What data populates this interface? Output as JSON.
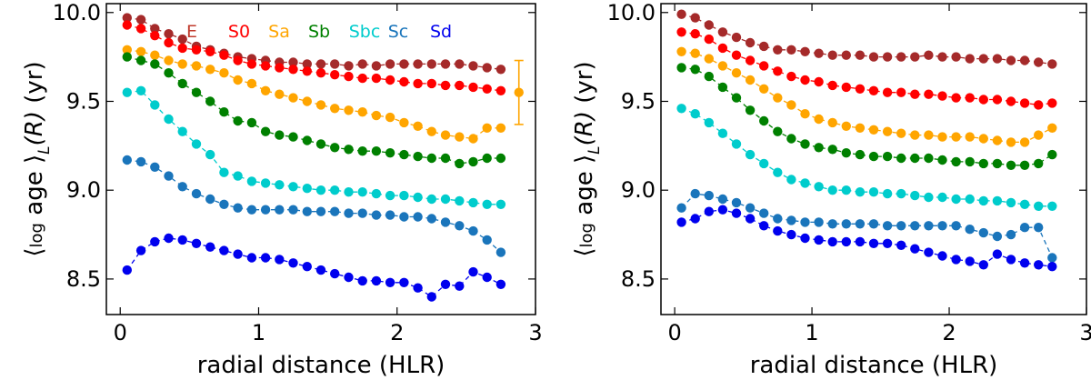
{
  "chart_data": [
    {
      "type": "line",
      "panel": "left",
      "xlabel": "radial distance (HLR)",
      "ylabel_parts": {
        "open": "⟨",
        "log": "log",
        "age": " age ",
        "close": "⟩",
        "sub": "L",
        "arg": "(R)",
        "unit": " (yr)"
      },
      "xlim": [
        -0.1,
        3.0
      ],
      "ylim": [
        8.3,
        10.05
      ],
      "xticks": [
        0,
        1,
        2,
        3
      ],
      "xtick_labels": [
        "0",
        "1",
        "2",
        "3"
      ],
      "yticks": [
        8.5,
        9.0,
        9.5,
        10.0
      ],
      "ytick_labels": [
        "8.5",
        "9.0",
        "9.5",
        "10.0"
      ],
      "legend": [
        {
          "label": "E",
          "color": "#c0392b"
        },
        {
          "label": "S0",
          "color": "#ff0000"
        },
        {
          "label": "Sa",
          "color": "#ffa500"
        },
        {
          "label": "Sb",
          "color": "#008000"
        },
        {
          "label": "Sbc",
          "color": "#00cccc"
        },
        {
          "label": "Sc",
          "color": "#1a75bb"
        },
        {
          "label": "Sd",
          "color": "#0000ee"
        }
      ],
      "x": [
        0.05,
        0.15,
        0.25,
        0.35,
        0.45,
        0.55,
        0.65,
        0.75,
        0.85,
        0.95,
        1.05,
        1.15,
        1.25,
        1.35,
        1.45,
        1.55,
        1.65,
        1.75,
        1.85,
        1.95,
        2.05,
        2.15,
        2.25,
        2.35,
        2.45,
        2.55,
        2.65,
        2.75
      ],
      "series": [
        {
          "name": "E",
          "color": "#a52a2a",
          "values": [
            9.97,
            9.96,
            9.91,
            9.88,
            9.85,
            9.81,
            9.79,
            9.77,
            9.75,
            9.74,
            9.73,
            9.72,
            9.72,
            9.71,
            9.71,
            9.71,
            9.7,
            9.71,
            9.7,
            9.71,
            9.71,
            9.71,
            9.71,
            9.71,
            9.71,
            9.7,
            9.69,
            9.68
          ]
        },
        {
          "name": "S0",
          "color": "#ff0000",
          "values": [
            9.93,
            9.91,
            9.87,
            9.83,
            9.8,
            9.79,
            9.78,
            9.76,
            9.73,
            9.71,
            9.7,
            9.69,
            9.68,
            9.67,
            9.66,
            9.65,
            9.64,
            9.63,
            9.63,
            9.62,
            9.61,
            9.6,
            9.6,
            9.59,
            9.59,
            9.58,
            9.57,
            9.56
          ]
        },
        {
          "name": "Sa",
          "color": "#ffa500",
          "values": [
            9.79,
            9.78,
            9.76,
            9.73,
            9.71,
            9.7,
            9.68,
            9.66,
            9.62,
            9.6,
            9.56,
            9.54,
            9.52,
            9.5,
            9.48,
            9.46,
            9.45,
            9.44,
            9.42,
            9.41,
            9.38,
            9.36,
            9.33,
            9.31,
            9.3,
            9.29,
            9.35,
            9.35
          ]
        },
        {
          "name": "Sb",
          "color": "#008000",
          "values": [
            9.75,
            9.73,
            9.71,
            9.66,
            9.6,
            9.55,
            9.5,
            9.44,
            9.39,
            9.38,
            9.33,
            9.31,
            9.3,
            9.28,
            9.26,
            9.24,
            9.23,
            9.22,
            9.22,
            9.21,
            9.2,
            9.19,
            9.18,
            9.18,
            9.15,
            9.16,
            9.18,
            9.18
          ]
        },
        {
          "name": "Sbc",
          "color": "#00cccc",
          "values": [
            9.55,
            9.56,
            9.48,
            9.4,
            9.33,
            9.26,
            9.2,
            9.1,
            9.08,
            9.05,
            9.04,
            9.03,
            9.02,
            9.01,
            9.0,
            9.0,
            8.99,
            8.99,
            8.98,
            8.97,
            8.97,
            8.96,
            8.95,
            8.95,
            8.94,
            8.93,
            8.92,
            8.92
          ]
        },
        {
          "name": "Sc",
          "color": "#1a75bb",
          "values": [
            9.17,
            9.16,
            9.13,
            9.08,
            9.02,
            8.98,
            8.95,
            8.92,
            8.9,
            8.89,
            8.89,
            8.89,
            8.89,
            8.88,
            8.88,
            8.88,
            8.87,
            8.87,
            8.86,
            8.86,
            8.85,
            8.85,
            8.84,
            8.82,
            8.8,
            8.77,
            8.72,
            8.65
          ]
        },
        {
          "name": "Sd",
          "color": "#0000ee",
          "values": [
            8.55,
            8.66,
            8.71,
            8.73,
            8.72,
            8.7,
            8.68,
            8.66,
            8.64,
            8.62,
            8.62,
            8.61,
            8.59,
            8.57,
            8.55,
            8.53,
            8.51,
            8.49,
            8.49,
            8.48,
            8.48,
            8.45,
            8.4,
            8.47,
            8.46,
            8.54,
            8.51,
            8.47
          ]
        }
      ],
      "error_bar": {
        "x": 2.88,
        "y": 9.55,
        "low": 9.37,
        "high": 9.73,
        "color": "#ffa500"
      }
    },
    {
      "type": "line",
      "panel": "right",
      "xlabel": "radial distance (HLR)",
      "ylabel_parts": {
        "open": "⟨",
        "log": "log",
        "age": " age ",
        "close": "⟩",
        "sub": "L",
        "arg": "(R)",
        "unit": " (yr)"
      },
      "xlim": [
        -0.1,
        3.0
      ],
      "ylim": [
        8.3,
        10.05
      ],
      "xticks": [
        0,
        1,
        2,
        3
      ],
      "xtick_labels": [
        "0",
        "1",
        "2",
        "3"
      ],
      "yticks": [
        8.5,
        9.0,
        9.5,
        10.0
      ],
      "ytick_labels": [
        "8.5",
        "9.0",
        "9.5",
        "10.0"
      ],
      "x": [
        0.05,
        0.15,
        0.25,
        0.35,
        0.45,
        0.55,
        0.65,
        0.75,
        0.85,
        0.95,
        1.05,
        1.15,
        1.25,
        1.35,
        1.45,
        1.55,
        1.65,
        1.75,
        1.85,
        1.95,
        2.05,
        2.15,
        2.25,
        2.35,
        2.45,
        2.55,
        2.65,
        2.75
      ],
      "series": [
        {
          "name": "E",
          "color": "#a52a2a",
          "values": [
            9.99,
            9.97,
            9.93,
            9.89,
            9.86,
            9.83,
            9.81,
            9.79,
            9.79,
            9.78,
            9.77,
            9.76,
            9.76,
            9.76,
            9.75,
            9.75,
            9.75,
            9.75,
            9.76,
            9.75,
            9.75,
            9.74,
            9.74,
            9.74,
            9.73,
            9.73,
            9.72,
            9.71
          ]
        },
        {
          "name": "S0",
          "color": "#ff0000",
          "values": [
            9.89,
            9.88,
            9.85,
            9.8,
            9.76,
            9.73,
            9.7,
            9.67,
            9.64,
            9.62,
            9.61,
            9.59,
            9.58,
            9.57,
            9.56,
            9.55,
            9.55,
            9.54,
            9.54,
            9.53,
            9.52,
            9.52,
            9.51,
            9.51,
            9.5,
            9.49,
            9.48,
            9.49
          ]
        },
        {
          "name": "Sa",
          "color": "#ffa500",
          "values": [
            9.78,
            9.77,
            9.74,
            9.7,
            9.66,
            9.62,
            9.57,
            9.52,
            9.48,
            9.43,
            9.4,
            9.38,
            9.36,
            9.35,
            9.34,
            9.33,
            9.32,
            9.31,
            9.31,
            9.3,
            9.3,
            9.3,
            9.29,
            9.28,
            9.27,
            9.27,
            9.31,
            9.35
          ]
        },
        {
          "name": "Sb",
          "color": "#008000",
          "values": [
            9.69,
            9.68,
            9.64,
            9.58,
            9.52,
            9.45,
            9.39,
            9.33,
            9.29,
            9.26,
            9.24,
            9.23,
            9.21,
            9.2,
            9.19,
            9.19,
            9.18,
            9.18,
            9.18,
            9.17,
            9.16,
            9.16,
            9.15,
            9.15,
            9.14,
            9.14,
            9.15,
            9.2
          ]
        },
        {
          "name": "Sbc",
          "color": "#00cccc",
          "values": [
            9.46,
            9.43,
            9.38,
            9.32,
            9.26,
            9.2,
            9.15,
            9.1,
            9.06,
            9.04,
            9.02,
            9.0,
            9.0,
            8.99,
            8.99,
            8.98,
            8.98,
            8.97,
            8.96,
            8.96,
            8.95,
            8.95,
            8.94,
            8.94,
            8.93,
            8.92,
            8.91,
            8.91
          ]
        },
        {
          "name": "Sc",
          "color": "#1a75bb",
          "values": [
            8.9,
            8.98,
            8.97,
            8.95,
            8.93,
            8.9,
            8.87,
            8.84,
            8.83,
            8.82,
            8.82,
            8.81,
            8.81,
            8.81,
            8.81,
            8.8,
            8.8,
            8.8,
            8.8,
            8.8,
            8.8,
            8.78,
            8.76,
            8.74,
            8.75,
            8.79,
            8.79,
            8.62
          ]
        },
        {
          "name": "Sd",
          "color": "#0000ee",
          "values": [
            8.82,
            8.84,
            8.88,
            8.89,
            8.87,
            8.84,
            8.8,
            8.77,
            8.75,
            8.73,
            8.72,
            8.71,
            8.71,
            8.71,
            8.7,
            8.7,
            8.69,
            8.67,
            8.65,
            8.63,
            8.61,
            8.6,
            8.58,
            8.64,
            8.61,
            8.59,
            8.58,
            8.57
          ]
        }
      ]
    }
  ]
}
